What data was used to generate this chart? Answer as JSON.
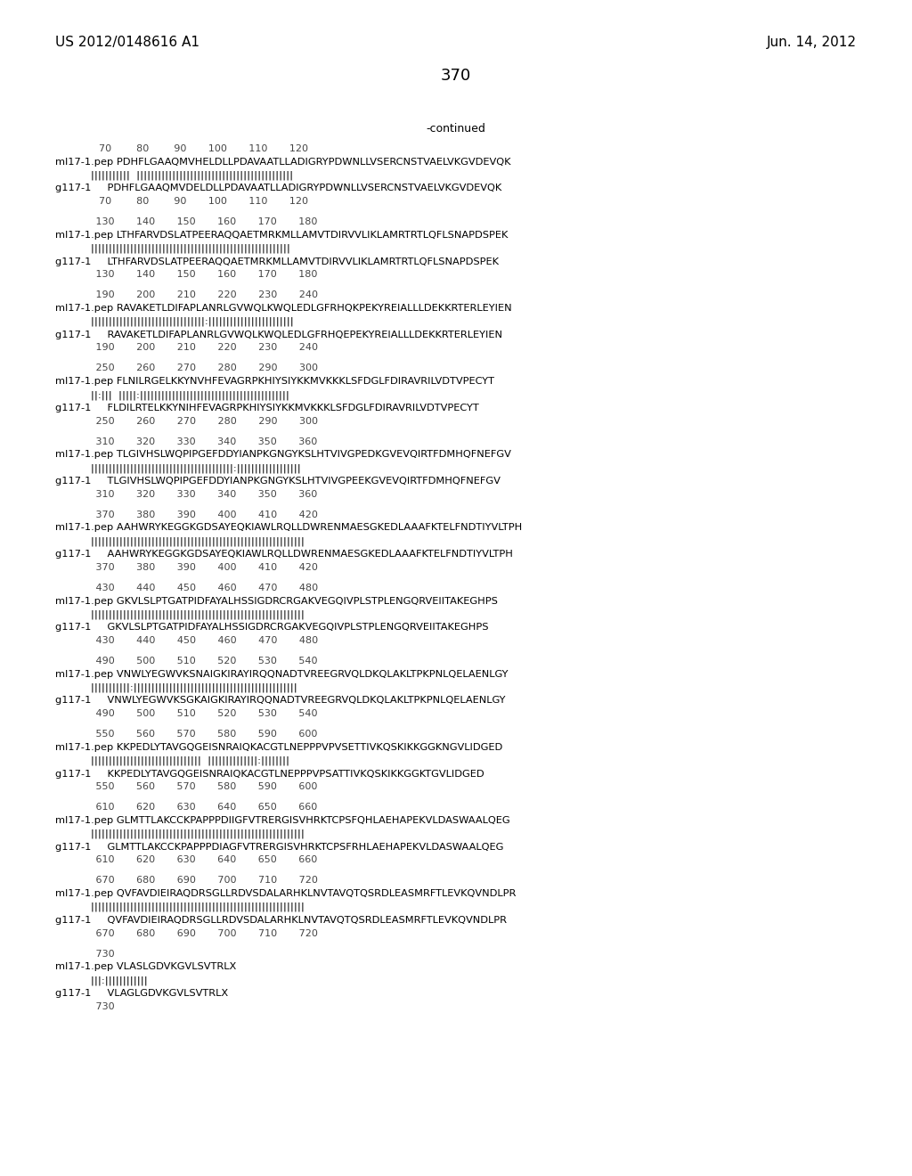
{
  "header_left": "US 2012/0148616 A1",
  "header_right": "Jun. 14, 2012",
  "page_number": "370",
  "continued_label": "-continued",
  "background_color": "#ffffff",
  "text_color": "#000000",
  "lines": [
    {
      "type": "numbers",
      "text": "              70        80        90       100       110       120"
    },
    {
      "type": "seq1",
      "text": "ml17-1.pep PDHFLGAAQMVHELDLLPDAVAATLLADIGRYPDWNLLVSERCNSTVAELVKGVDEVQK"
    },
    {
      "type": "match",
      "text": "           |||||||||||  ||||||||||||||||||||||||||||||||||||||||||||"
    },
    {
      "type": "seq2",
      "text": "g117-1     PDHFLGAAQMVDELDLLPDAVAATLLADIGRYPDWNLLVSERCNSTVAELVKGVDEVQK"
    },
    {
      "type": "numbers",
      "text": "              70        80        90       100       110       120"
    },
    {
      "type": "blank"
    },
    {
      "type": "numbers",
      "text": "             130       140       150       160       170       180"
    },
    {
      "type": "seq1",
      "text": "ml17-1.pep LTHFARVDSLATPEERAQQAETMRKMLLAMVTDIRVVLIKLAMRTRTLQFLSNAPDSPEK"
    },
    {
      "type": "match",
      "text": "           ||||||||||||||||||||||||||||||||||||||||||||||||||||||||"
    },
    {
      "type": "seq2",
      "text": "g117-1     LTHFARVDSLATPEERAQQAETMRKMLLAMVTDIRVVLIKLAMRTRTLQFLSNAPDSPEK"
    },
    {
      "type": "numbers",
      "text": "             130       140       150       160       170       180"
    },
    {
      "type": "blank"
    },
    {
      "type": "numbers2",
      "text": "             190       200       210       220       230       240"
    },
    {
      "type": "seq1",
      "text": "ml17-1.pep RAVAKETLDIFAPLANRLGVWQLKWQLEDLGFRHQKPEKYREIALLLDEKKRTERLEYIEN"
    },
    {
      "type": "match",
      "text": "           ||||||||||||||||||||||||||||||||:||||||||||||||||||||||||"
    },
    {
      "type": "seq2",
      "text": "g117-1     RAVAKETLDIFAPLANRLGVWQLKWQLEDLGFRHQEPEKYREIALLLDEKKRTERLEYIEN"
    },
    {
      "type": "numbers",
      "text": "             190       200       210       220       230       240"
    },
    {
      "type": "blank"
    },
    {
      "type": "numbers",
      "text": "             250       260       270       280       290       300"
    },
    {
      "type": "seq1",
      "text": "ml17-1.pep FLNILRGELKKYNVHFEVAGRPKHIYSIYKKMVKKKLSFDGLFDIRAVRILVDTVPECYT"
    },
    {
      "type": "match",
      "text": "           ||:|||  |||||:||||||||||||||||||||||||||||||||||||||||||"
    },
    {
      "type": "seq2",
      "text": "g117-1     FLDILRTELKKYNIHFEVAGRPKHIYSIYKKMVKKKLSFDGLFDIRAVRILVDTVPECYT"
    },
    {
      "type": "numbers",
      "text": "             250       260       270       280       290       300"
    },
    {
      "type": "blank"
    },
    {
      "type": "numbers",
      "text": "             310       320       330       340       350       360"
    },
    {
      "type": "seq1",
      "text": "ml17-1.pep TLGIVHSLWQPIPGEFDDYIANPKGNGYKSLHTVIVGPEDKGVEVQIRTFDMHQFNEFGV"
    },
    {
      "type": "match",
      "text": "           ||||||||||||||||||||||||||||||||||||||||:||||||||||||||||||"
    },
    {
      "type": "seq2",
      "text": "g117-1     TLGIVHSLWQPIPGEFDDYIANPKGNGYKSLHTVIVGPEEKGVEVQIRTFDMHQFNEFGV"
    },
    {
      "type": "numbers",
      "text": "             310       320       330       340       350       360"
    },
    {
      "type": "blank"
    },
    {
      "type": "numbers",
      "text": "             370       380       390       400       410       420"
    },
    {
      "type": "seq1",
      "text": "ml17-1.pep AAHWRYKEGGKGDSAYEQKIAWLRQLLDWRENMAESGKEDLAAAFKTELFNDTIYVLTPH"
    },
    {
      "type": "match",
      "text": "           ||||||||||||||||||||||||||||||||||||||||||||||||||||||||||||"
    },
    {
      "type": "seq2",
      "text": "g117-1     AAHWRYKEGGKGDSAYEQKIAWLRQLLDWRENMAESGKEDLAAAFKTELFNDTIYVLTPH"
    },
    {
      "type": "numbers",
      "text": "             370       380       390       400       410       420"
    },
    {
      "type": "blank"
    },
    {
      "type": "numbers",
      "text": "             430       440       450       460       470       480"
    },
    {
      "type": "seq1",
      "text": "ml17-1.pep GKVLSLPTGATPIDFAYALHSSIGDRCRGAKVEGQIVPLSTPLENGQRVEIITAKEGHPS"
    },
    {
      "type": "match",
      "text": "           ||||||||||||||||||||||||||||||||||||||||||||||||||||||||||||"
    },
    {
      "type": "seq2",
      "text": "g117-1     GKVLSLPTGATPIDFAYALHSSIGDRCRGAKVEGQIVPLSTPLENGQRVEIITAKEGHPS"
    },
    {
      "type": "numbers",
      "text": "             430       440       450       460       470       480"
    },
    {
      "type": "blank"
    },
    {
      "type": "numbers",
      "text": "             490       500       510       520       530       540"
    },
    {
      "type": "seq1",
      "text": "ml17-1.pep VNWLYEGWVKSNAIGKIRAYIRQQNADTVREEGRVQLDKQLAKLTPKPNLQELAENLGY"
    },
    {
      "type": "match",
      "text": "           |||||||||||:||||||||||||||||||||||||||||||||||||||||||||||"
    },
    {
      "type": "seq2",
      "text": "g117-1     VNWLYEGWVKSGKAIGKIRAYIRQQNADTVREEGRVQLDKQLAKLTPKPNLQELAENLGY"
    },
    {
      "type": "numbers",
      "text": "             490       500       510       520       530       540"
    },
    {
      "type": "blank"
    },
    {
      "type": "numbers",
      "text": "             550       560       570       580       590       600"
    },
    {
      "type": "seq1",
      "text": "ml17-1.pep KKPEDLYTAVGQGEISNRAIQKACGTLNEPPPVPVSETTIVKQSKIKKGGKNGVLIDGED"
    },
    {
      "type": "match",
      "text": "           |||||||||||||||||||||||||||||||  ||||||||||||||:||||||||"
    },
    {
      "type": "seq2",
      "text": "g117-1     KKPEDLYTAVGQGEISNRAIQKACGTLNEPPPVPSATTIVKQSKIKKGGKTGVLIDGED"
    },
    {
      "type": "numbers",
      "text": "             550       560       570       580       590       600"
    },
    {
      "type": "blank"
    },
    {
      "type": "numbers",
      "text": "             610       620       630       640       650       660"
    },
    {
      "type": "seq1",
      "text": "ml17-1.pep GLMTTLAKCCKPAPPPDIIGFVTRERGISVHRKTCPSFQHLAEHAPEKVLDASWAALQEG"
    },
    {
      "type": "match",
      "text": "           ||||||||||||||||||||||||||||||||||||||||||||||||||||||||||||"
    },
    {
      "type": "seq2",
      "text": "g117-1     GLMTTLAKCCKPAPPPDIAGFVTRERGISVHRKTCPSFRHLAEHAPEKVLDASWAALQEG"
    },
    {
      "type": "numbers",
      "text": "             610       620       630       640       650       660"
    },
    {
      "type": "blank"
    },
    {
      "type": "numbers",
      "text": "             670       680       690       700       710       720"
    },
    {
      "type": "seq1",
      "text": "ml17-1.pep QVFAVDIEIRAQDRSGLLRDVSDALARHKLNVTAVQTQSRDLEASMRFTLEVKQVNDLPR"
    },
    {
      "type": "match",
      "text": "           ||||||||||||||||||||||||||||||||||||||||||||||||||||||||||||"
    },
    {
      "type": "seq2",
      "text": "g117-1     QVFAVDIEIRAQDRSGLLRDVSDALARHKLNVTAVQTQSRDLEASMRFTLEVKQVNDLPR"
    },
    {
      "type": "numbers",
      "text": "             670       680       690       700       710       720"
    },
    {
      "type": "blank"
    },
    {
      "type": "numbers",
      "text": "             730"
    },
    {
      "type": "seq1",
      "text": "ml17-1.pep VLASLGDVKGVLSVTRLX"
    },
    {
      "type": "match",
      "text": "           |||:||||||||||||"
    },
    {
      "type": "seq2",
      "text": "g117-1     VLAGLGDVKGVLSVTRLX"
    },
    {
      "type": "numbers",
      "text": "             730"
    }
  ]
}
